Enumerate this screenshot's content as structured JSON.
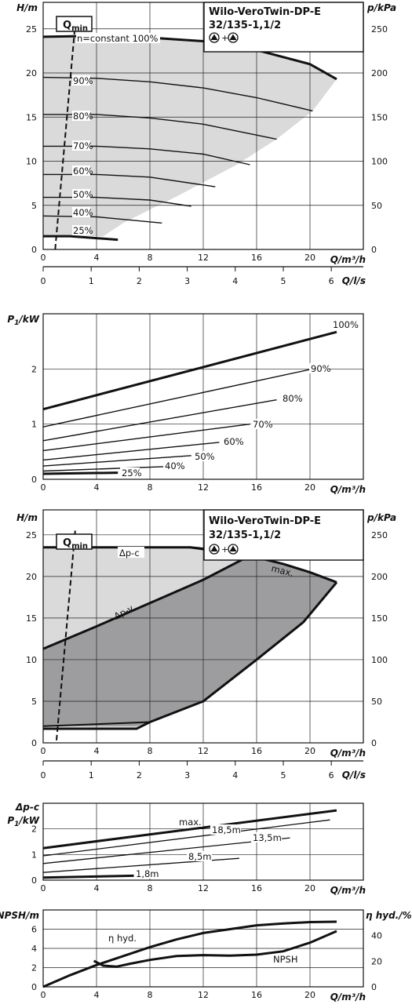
{
  "chart_data": [
    {
      "id": "head_fixed",
      "type": "line",
      "ylabel": "H/m",
      "y2label": "p/kPa",
      "xlabel": "Q/m³/h",
      "xlim": [
        0,
        24
      ],
      "ylim": [
        0,
        28
      ],
      "y2lim": [
        0,
        280
      ],
      "xticks": [
        0,
        4,
        8,
        12,
        16,
        20
      ],
      "yticks": [
        0,
        5,
        10,
        15,
        20,
        25
      ],
      "y2ticks": [
        0,
        50,
        100,
        150,
        200,
        250
      ],
      "title": "Wilo-VeroTwin-DP-E",
      "subtitle": "32/135-1,1/2",
      "pump_symbols": "▲+▲",
      "qmin_label": "Qmin",
      "qmin": {
        "x": [
          0.9,
          2.4
        ],
        "y": [
          0,
          25.5
        ]
      },
      "envelope": {
        "x": [
          0,
          4,
          8,
          12,
          16,
          20,
          22.0,
          20.2,
          17.5,
          14.5,
          12,
          10,
          8.5,
          6,
          4.5,
          0
        ],
        "y": [
          24.1,
          24.2,
          24.0,
          23.6,
          22.6,
          21.0,
          19.3,
          15.7,
          12.5,
          9.6,
          7.6,
          6.0,
          4.9,
          3.0,
          1.5,
          1.5
        ]
      },
      "series": [
        {
          "name": "n=constant 100%",
          "x": [
            0,
            4,
            8,
            12,
            16,
            20,
            22.0
          ],
          "y": [
            24.1,
            24.2,
            24.0,
            23.6,
            22.6,
            21.0,
            19.3
          ]
        },
        {
          "name": "90%",
          "x": [
            0,
            4,
            8,
            12,
            16,
            20.2
          ],
          "y": [
            19.5,
            19.4,
            19.0,
            18.3,
            17.2,
            15.7
          ]
        },
        {
          "name": "80%",
          "x": [
            0,
            4,
            8,
            12,
            17.5
          ],
          "y": [
            15.3,
            15.3,
            14.9,
            14.2,
            12.5
          ]
        },
        {
          "name": "70%",
          "x": [
            0,
            4,
            8,
            12,
            15.5
          ],
          "y": [
            11.7,
            11.7,
            11.4,
            10.8,
            9.6
          ]
        },
        {
          "name": "60%",
          "x": [
            0,
            4,
            8,
            12.9
          ],
          "y": [
            8.5,
            8.5,
            8.2,
            7.1
          ]
        },
        {
          "name": "50%",
          "x": [
            0,
            4,
            8,
            11.1
          ],
          "y": [
            5.9,
            5.9,
            5.6,
            4.9
          ]
        },
        {
          "name": "40%",
          "x": [
            0,
            4,
            8.9
          ],
          "y": [
            3.8,
            3.7,
            3.0
          ]
        },
        {
          "name": "25%",
          "x": [
            0,
            2,
            5.6
          ],
          "y": [
            1.5,
            1.5,
            1.1
          ]
        }
      ],
      "curve_labels": [
        "n=constant 100%",
        "90%",
        "80%",
        "70%",
        "60%",
        "50%",
        "40%",
        "25%"
      ]
    },
    {
      "id": "flow_ls_axis",
      "type": "axis",
      "xlabel": "Q/l/s",
      "xlim": [
        0,
        6.667
      ],
      "xticks": [
        0,
        1,
        2,
        3,
        4,
        5,
        6
      ]
    },
    {
      "id": "power_fixed",
      "type": "line",
      "ylabel": "P1/kW",
      "xlabel": "Q/m³/h",
      "xlim": [
        0,
        24
      ],
      "ylim": [
        0,
        3.0
      ],
      "xticks": [
        0,
        4,
        8,
        12,
        16,
        20
      ],
      "yticks": [
        0,
        1,
        2
      ],
      "series": [
        {
          "name": "100%",
          "x": [
            0,
            22.0
          ],
          "y": [
            1.27,
            2.67
          ]
        },
        {
          "name": "90%",
          "x": [
            0,
            20.2
          ],
          "y": [
            0.95,
            2.0
          ]
        },
        {
          "name": "80%",
          "x": [
            0,
            17.5
          ],
          "y": [
            0.7,
            1.44
          ]
        },
        {
          "name": "70%",
          "x": [
            0,
            15.5
          ],
          "y": [
            0.52,
            1.0
          ]
        },
        {
          "name": "60%",
          "x": [
            0,
            13.2
          ],
          "y": [
            0.35,
            0.67
          ]
        },
        {
          "name": "50%",
          "x": [
            0,
            11.1
          ],
          "y": [
            0.24,
            0.43
          ]
        },
        {
          "name": "40%",
          "x": [
            0,
            9.2
          ],
          "y": [
            0.15,
            0.23
          ]
        },
        {
          "name": "25%",
          "x": [
            0,
            5.6
          ],
          "y": [
            0.1,
            0.12
          ]
        }
      ]
    },
    {
      "id": "head_variable",
      "type": "area",
      "ylabel": "H/m",
      "y2label": "p/kPa",
      "xlabel": "Q/m³/h",
      "xlim": [
        0,
        24
      ],
      "ylim": [
        0,
        28
      ],
      "y2lim": [
        0,
        280
      ],
      "xticks": [
        0,
        4,
        8,
        12,
        16,
        20
      ],
      "yticks": [
        0,
        5,
        10,
        15,
        20,
        25
      ],
      "y2ticks": [
        0,
        50,
        100,
        150,
        200,
        250
      ],
      "title": "Wilo-VeroTwin-DP-E",
      "subtitle": "32/135-1,1/2",
      "pump_symbols": "▲+▲",
      "qmin_label": "Qmin",
      "qmin": {
        "x": [
          1.0,
          2.4
        ],
        "y": [
          0.3,
          25.5
        ]
      },
      "dpc_label": "Δp-c",
      "dpv_label": "Δp-v",
      "max_label": "max.",
      "dpc": {
        "x": [
          0,
          4,
          8,
          11,
          15.5
        ],
        "y": [
          23.5,
          23.5,
          23.5,
          23.5,
          22.5
        ]
      },
      "dpv": {
        "x": [
          0,
          4,
          8,
          12,
          15.5
        ],
        "y": [
          11.3,
          14.0,
          16.8,
          19.6,
          22.5
        ]
      },
      "max": {
        "x": [
          11,
          14,
          16,
          18,
          20,
          22.0
        ],
        "y": [
          23.5,
          23.0,
          22.3,
          21.5,
          20.5,
          19.3
        ]
      },
      "outer": {
        "x": [
          0,
          11,
          14,
          16,
          18,
          20,
          22.0,
          19.5,
          16,
          12,
          8,
          7,
          0
        ],
        "y": [
          23.5,
          23.5,
          23.0,
          22.3,
          21.5,
          20.5,
          19.3,
          14.5,
          10.0,
          5.0,
          2.5,
          1.7,
          1.7
        ]
      },
      "dark_area": {
        "x": [
          0,
          4,
          8,
          12,
          15.5,
          16,
          18,
          20,
          22.0,
          19.5,
          16,
          12,
          8,
          7,
          0
        ],
        "y": [
          11.3,
          14.0,
          16.8,
          19.6,
          22.5,
          22.3,
          21.5,
          20.5,
          19.3,
          14.5,
          10.0,
          5.0,
          2.5,
          2.0,
          2.0
        ]
      },
      "min_line": {
        "x": [
          0,
          8
        ],
        "y": [
          2.0,
          2.5
        ]
      }
    },
    {
      "id": "flow_ls_axis_2",
      "type": "axis",
      "xlabel": "Q/l/s",
      "xlim": [
        0,
        6.667
      ],
      "xticks": [
        0,
        1,
        2,
        3,
        4,
        5,
        6
      ]
    },
    {
      "id": "power_variable",
      "type": "line",
      "ylabel": "P1/kW",
      "ylabel_top": "Δp-c",
      "xlabel": "Q/m³/h",
      "xlim": [
        0,
        24
      ],
      "ylim": [
        0,
        3.0
      ],
      "xticks": [
        0,
        4,
        8,
        12,
        16,
        20
      ],
      "yticks": [
        0,
        1,
        2
      ],
      "series": [
        {
          "name": "max.",
          "x": [
            0,
            22.0
          ],
          "y": [
            1.25,
            2.72
          ]
        },
        {
          "name": "18,5m",
          "x": [
            0,
            21.5
          ],
          "y": [
            0.95,
            2.35
          ]
        },
        {
          "name": "13,5m",
          "x": [
            0,
            18.5
          ],
          "y": [
            0.65,
            1.65
          ]
        },
        {
          "name": "8,5m",
          "x": [
            0,
            14.7
          ],
          "y": [
            0.3,
            0.85
          ]
        },
        {
          "name": "1,8m",
          "x": [
            0,
            6.8
          ],
          "y": [
            0.1,
            0.17
          ]
        }
      ]
    },
    {
      "id": "npsh_efficiency",
      "type": "line",
      "ylabel": "NPSH/m",
      "y2label": "η hyd./%",
      "xlabel": "Q/m³/h",
      "xlim": [
        0,
        24
      ],
      "ylim": [
        0,
        8
      ],
      "y2lim": [
        0,
        60
      ],
      "xticks": [
        0,
        4,
        8,
        12,
        16,
        20
      ],
      "yticks": [
        0,
        2,
        4,
        6
      ],
      "y2ticks": [
        0,
        20,
        40
      ],
      "series": [
        {
          "name": "η hyd.",
          "axis": "right",
          "x": [
            0,
            2,
            4,
            6,
            8,
            10,
            12,
            14,
            16,
            18,
            20,
            22
          ],
          "y": [
            0,
            9,
            17,
            24,
            31,
            37,
            42,
            45,
            48,
            49.5,
            50.5,
            50.8
          ]
        },
        {
          "name": "NPSH",
          "axis": "left",
          "x": [
            3.8,
            4.5,
            5.5,
            6.5,
            8,
            10,
            12,
            14,
            16,
            18,
            20,
            22
          ],
          "y": [
            2.7,
            2.2,
            2.1,
            2.4,
            2.8,
            3.2,
            3.3,
            3.25,
            3.35,
            3.7,
            4.6,
            5.8
          ]
        }
      ]
    }
  ]
}
